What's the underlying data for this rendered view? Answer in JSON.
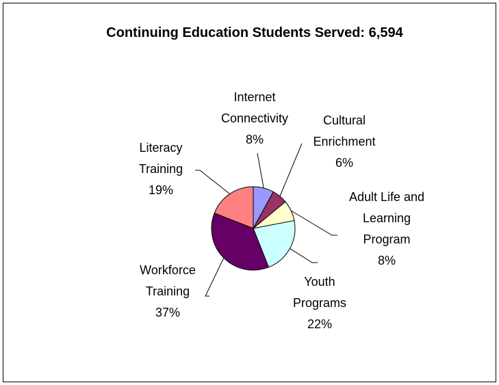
{
  "chart_data": {
    "type": "pie",
    "title": "Continuing Education Students Served: 6,594",
    "slices": [
      {
        "label": [
          "Internet",
          "Connectivity"
        ],
        "value": 8,
        "display": "8%",
        "color": "#9999ff"
      },
      {
        "label": [
          "Cultural",
          "Enrichment"
        ],
        "value": 6,
        "display": "6%",
        "color": "#993366"
      },
      {
        "label": [
          "Adult Life and",
          "Learning",
          "Program"
        ],
        "value": 8,
        "display": "8%",
        "color": "#ffffcc"
      },
      {
        "label": [
          "Youth",
          "Programs"
        ],
        "value": 22,
        "display": "22%",
        "color": "#ccffff"
      },
      {
        "label": [
          "Workforce",
          "Training"
        ],
        "value": 37,
        "display": "37%",
        "color": "#660066"
      },
      {
        "label": [
          "Literacy",
          "Training"
        ],
        "value": 19,
        "display": "19%",
        "color": "#ff8080"
      }
    ],
    "legend": "none"
  }
}
